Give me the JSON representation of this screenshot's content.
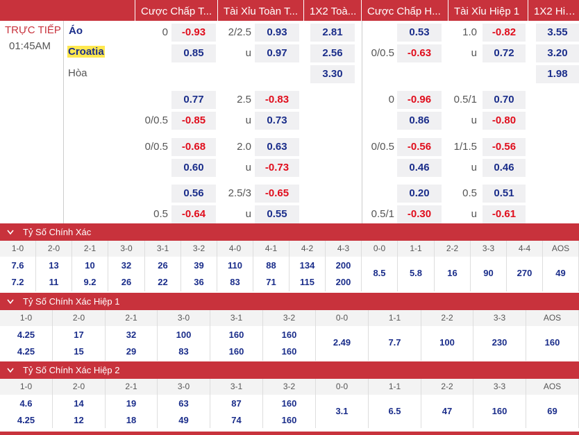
{
  "headers": [
    "Cược Chấp T...",
    "Tài Xỉu Toàn T...",
    "1X2 Toà...",
    "Cược Chấp H...",
    "Tài Xỉu Hiệp 1",
    "1X2 Hiệ..."
  ],
  "match": {
    "live": "TRỰC TIẾP",
    "time": "01:45AM",
    "home": "Áo",
    "away": "Croatia",
    "draw": "Hòa"
  },
  "rows": [
    {
      "hl": "0",
      "h1": "-0.93",
      "h2": "0.85",
      "tl": "2/2.5",
      "t1": "0.93",
      "tu": "u",
      "t2": "0.97",
      "x1": "2.81",
      "x2": "2.56",
      "x3": "3.30",
      "hhl": "",
      "hh1": "0.53",
      "hhl2": "0/0.5",
      "hh2": "-0.63",
      "htl": "1.0",
      "ht1": "-0.82",
      "htu": "u",
      "ht2": "0.72",
      "hx1": "3.55",
      "hx2": "3.20",
      "hx3": "1.98"
    },
    {
      "hl": "",
      "h1": "0.77",
      "hl2": "0/0.5",
      "h2": "-0.85",
      "tl": "2.5",
      "t1": "-0.83",
      "tu": "u",
      "t2": "0.73",
      "hhl": "0",
      "hh1": "-0.96",
      "hhl2": "",
      "hh2": "0.86",
      "htl": "0.5/1",
      "ht1": "0.70",
      "htu": "u",
      "ht2": "-0.80"
    },
    {
      "hl": "0/0.5",
      "h1": "-0.68",
      "hl2": "",
      "h2": "0.60",
      "tl": "2.0",
      "t1": "0.63",
      "tu": "u",
      "t2": "-0.73",
      "hhl": "0/0.5",
      "hh1": "-0.56",
      "hhl2": "",
      "hh2": "0.46",
      "htl": "1/1.5",
      "ht1": "-0.56",
      "htu": "u",
      "ht2": "0.46"
    },
    {
      "hl": "",
      "h1": "0.56",
      "hl2": "0.5",
      "h2": "-0.64",
      "tl": "2.5/3",
      "t1": "-0.65",
      "tu": "u",
      "t2": "0.55",
      "hhl": "",
      "hh1": "0.20",
      "hhl2": "0.5/1",
      "hh2": "-0.30",
      "htl": "0.5",
      "ht1": "0.51",
      "htu": "u",
      "ht2": "-0.61"
    }
  ],
  "sections": [
    {
      "title": "Tỷ Số Chính Xác",
      "cols": [
        {
          "h": "1-0",
          "a": "7.6",
          "b": "7.2"
        },
        {
          "h": "2-0",
          "a": "13",
          "b": "11"
        },
        {
          "h": "2-1",
          "a": "10",
          "b": "9.2"
        },
        {
          "h": "3-0",
          "a": "32",
          "b": "26"
        },
        {
          "h": "3-1",
          "a": "26",
          "b": "22"
        },
        {
          "h": "3-2",
          "a": "39",
          "b": "36"
        },
        {
          "h": "4-0",
          "a": "110",
          "b": "83"
        },
        {
          "h": "4-1",
          "a": "88",
          "b": "71"
        },
        {
          "h": "4-2",
          "a": "134",
          "b": "115"
        },
        {
          "h": "4-3",
          "a": "200",
          "b": "200"
        },
        {
          "h": "0-0",
          "m": "8.5"
        },
        {
          "h": "1-1",
          "m": "5.8"
        },
        {
          "h": "2-2",
          "m": "16"
        },
        {
          "h": "3-3",
          "m": "90"
        },
        {
          "h": "4-4",
          "m": "270"
        },
        {
          "h": "AOS",
          "m": "49"
        }
      ]
    },
    {
      "title": "Tỷ Số Chính Xác Hiệp 1",
      "cols": [
        {
          "h": "1-0",
          "a": "4.25",
          "b": "4.25"
        },
        {
          "h": "2-0",
          "a": "17",
          "b": "15"
        },
        {
          "h": "2-1",
          "a": "32",
          "b": "29"
        },
        {
          "h": "3-0",
          "a": "100",
          "b": "83"
        },
        {
          "h": "3-1",
          "a": "160",
          "b": "160"
        },
        {
          "h": "3-2",
          "a": "160",
          "b": "160"
        },
        {
          "h": "0-0",
          "m": "2.49"
        },
        {
          "h": "1-1",
          "m": "7.7"
        },
        {
          "h": "2-2",
          "m": "100"
        },
        {
          "h": "3-3",
          "m": "230"
        },
        {
          "h": "AOS",
          "m": "160"
        }
      ]
    },
    {
      "title": "Tỷ Số Chính Xác Hiệp 2",
      "cols": [
        {
          "h": "1-0",
          "a": "4.6",
          "b": "4.25"
        },
        {
          "h": "2-0",
          "a": "14",
          "b": "12"
        },
        {
          "h": "2-1",
          "a": "19",
          "b": "18"
        },
        {
          "h": "3-0",
          "a": "63",
          "b": "49"
        },
        {
          "h": "3-1",
          "a": "87",
          "b": "74"
        },
        {
          "h": "3-2",
          "a": "160",
          "b": "160"
        },
        {
          "h": "0-0",
          "m": "3.1"
        },
        {
          "h": "1-1",
          "m": "6.5"
        },
        {
          "h": "2-2",
          "m": "47"
        },
        {
          "h": "3-3",
          "m": "160"
        },
        {
          "h": "AOS",
          "m": "69"
        }
      ]
    }
  ],
  "icons": {
    "collapse": "chevron-down-icon"
  }
}
